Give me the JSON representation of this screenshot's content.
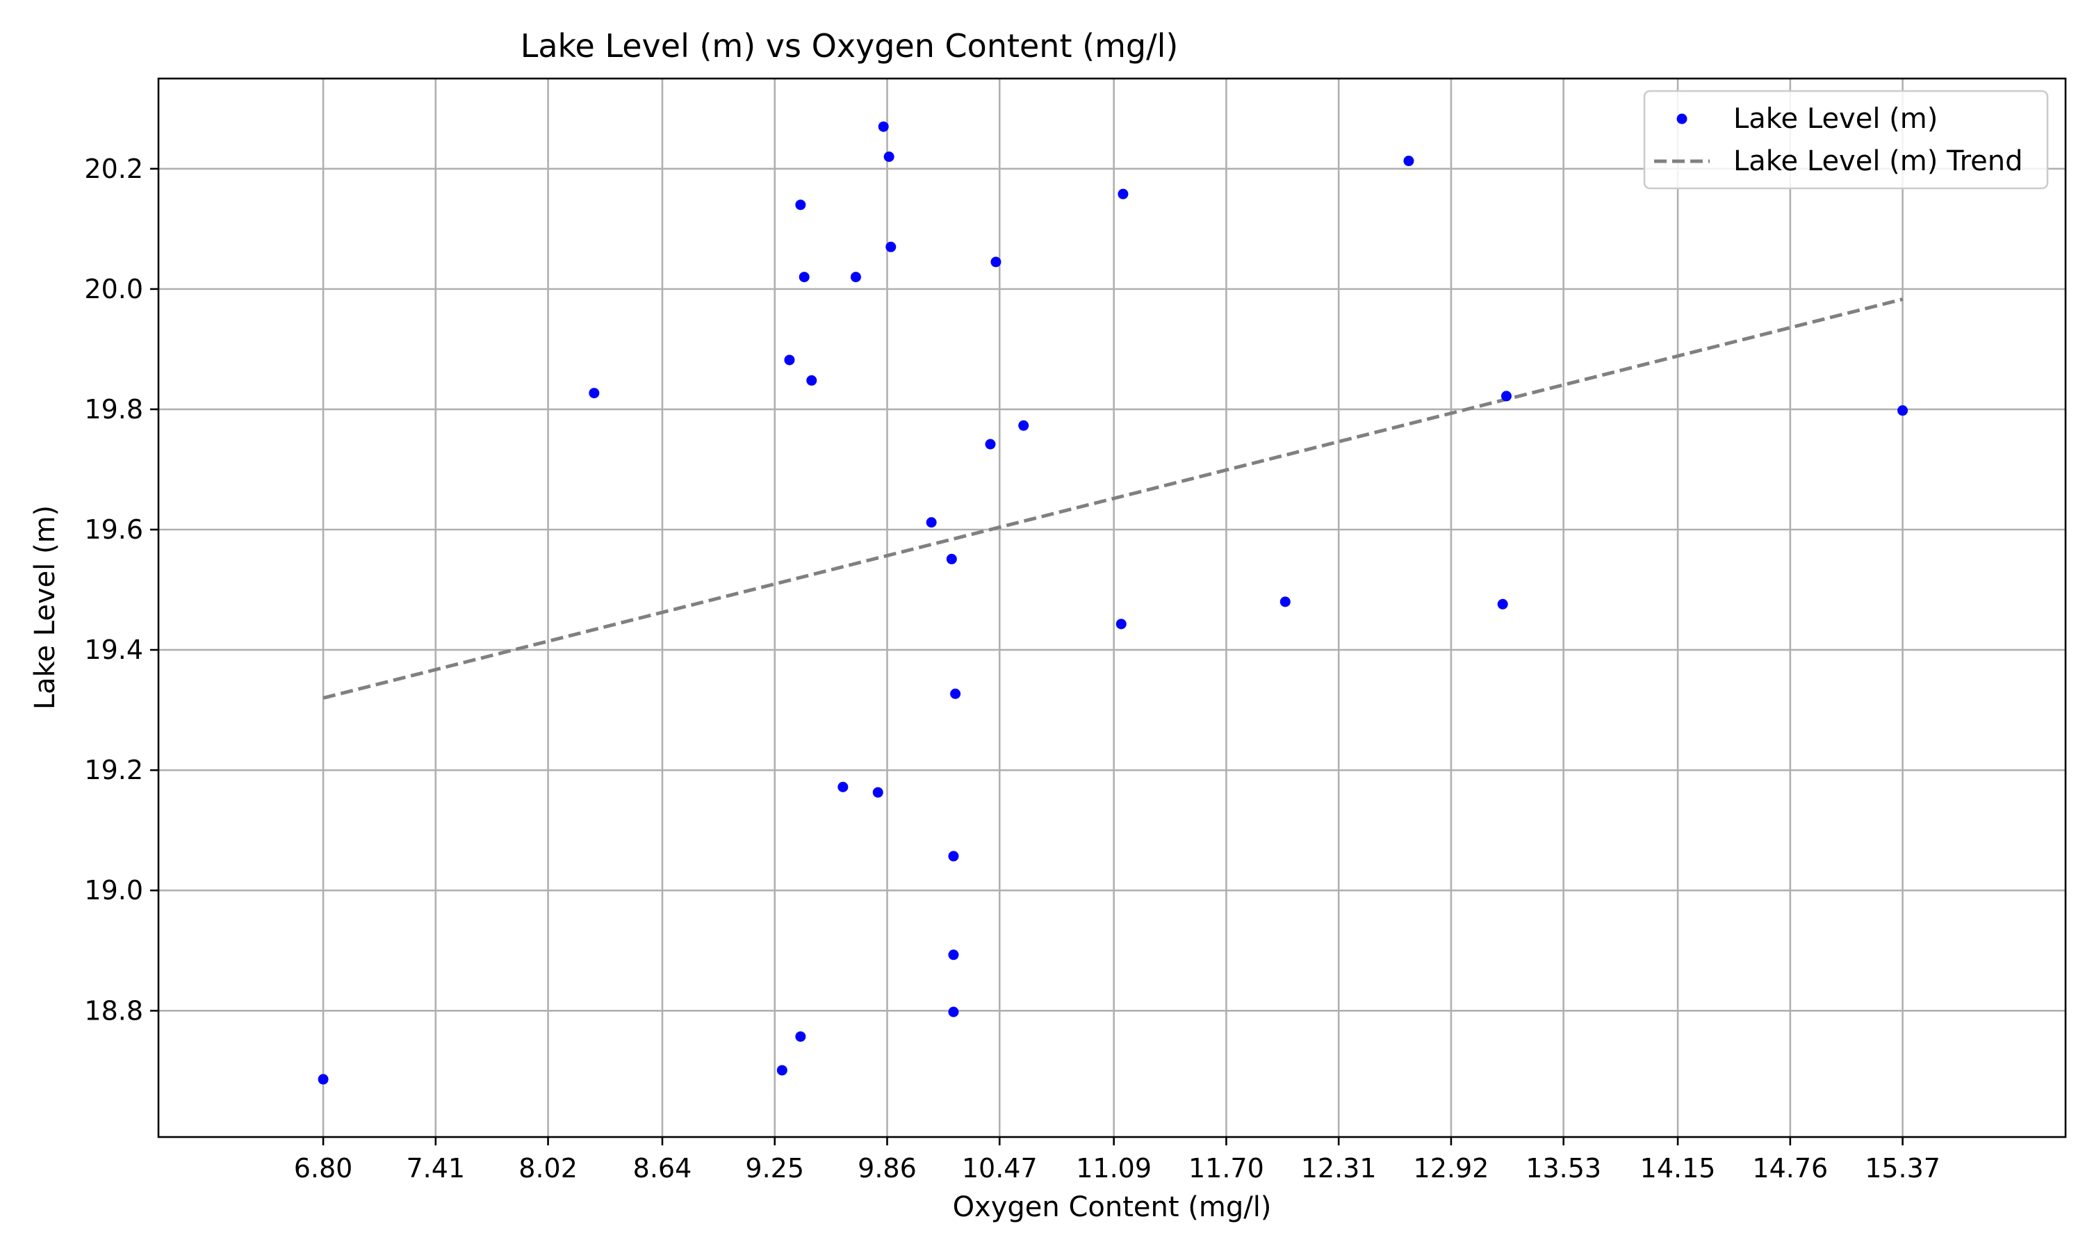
{
  "chart_data": {
    "type": "scatter",
    "title": "Lake Level (m) vs Oxygen Content (mg/l)",
    "xlabel": "Oxygen Content (mg/l)",
    "ylabel": "Lake Level (m)",
    "xlim": [
      5.906,
      16.254
    ],
    "ylim": [
      18.59,
      20.35
    ],
    "x_ticks": [
      "6.80",
      "7.41",
      "8.02",
      "8.64",
      "9.25",
      "9.86",
      "10.47",
      "11.09",
      "11.70",
      "12.31",
      "12.92",
      "13.53",
      "14.15",
      "14.76",
      "15.37"
    ],
    "y_ticks": [
      "18.8",
      "19.0",
      "19.2",
      "19.4",
      "19.6",
      "19.8",
      "20.0",
      "20.2"
    ],
    "grid": true,
    "legend_position": "top-right",
    "series": [
      {
        "name": "Lake Level (m)",
        "color": "#0000ff",
        "marker": "circle",
        "x": [
          9.84,
          9.87,
          9.39,
          9.88,
          9.41,
          9.69,
          10.45,
          11.14,
          12.69,
          9.33,
          9.45,
          8.27,
          10.42,
          10.6,
          10.1,
          10.21,
          11.13,
          12.02,
          13.2,
          10.23,
          9.62,
          9.81,
          10.22,
          10.22,
          10.22,
          9.39,
          9.29,
          6.8,
          13.22,
          15.37
        ],
        "y": [
          20.27,
          20.22,
          20.14,
          20.07,
          20.02,
          20.02,
          20.045,
          20.158,
          20.213,
          19.882,
          19.848,
          19.827,
          19.742,
          19.773,
          19.612,
          19.551,
          19.443,
          19.48,
          19.476,
          19.327,
          19.172,
          19.163,
          19.057,
          18.893,
          18.798,
          18.757,
          18.701,
          18.686,
          19.822,
          19.798
        ]
      },
      {
        "name": "Lake Level (m) Trend",
        "color": "#808080",
        "style": "dashed",
        "x": [
          6.8,
          15.37
        ],
        "y": [
          19.32,
          19.983
        ]
      }
    ]
  }
}
